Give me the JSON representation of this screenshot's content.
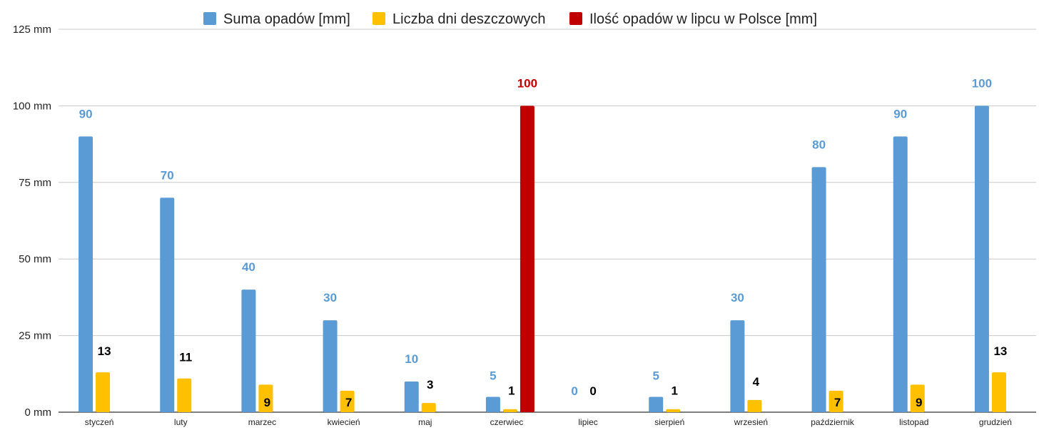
{
  "chart_data": {
    "type": "bar",
    "categories": [
      "styczeń",
      "luty",
      "marzec",
      "kwiecień",
      "maj",
      "czerwiec",
      "lipiec",
      "sierpień",
      "wrzesień",
      "październik",
      "listopad",
      "grudzień"
    ],
    "series": [
      {
        "name": "Suma opadów [mm]",
        "color": "#5B9BD5",
        "label_color": "#5B9BD5",
        "values": [
          90,
          70,
          40,
          30,
          10,
          5,
          0,
          5,
          30,
          80,
          90,
          100
        ],
        "labels": [
          "90",
          "70",
          "40",
          "30",
          "10",
          "5",
          "0",
          "5",
          "30",
          "80",
          "90",
          "100"
        ]
      },
      {
        "name": "Liczba dni deszczowych",
        "color": "#FFC000",
        "label_color": "#000000",
        "values": [
          13,
          11,
          9,
          7,
          3,
          1,
          0,
          1,
          4,
          7,
          9,
          13
        ],
        "labels": [
          "13",
          "11",
          "9",
          "7",
          "3",
          "1",
          "0",
          "1",
          "4",
          "7",
          "9",
          "13"
        ]
      },
      {
        "name": "Ilość opadów w lipcu w Polsce [mm]",
        "color": "#C00000",
        "label_color": "#C00000",
        "values": [
          null,
          null,
          null,
          null,
          null,
          100,
          null,
          null,
          null,
          null,
          null,
          null
        ],
        "labels": [
          "",
          "",
          "",
          "",
          "",
          "100",
          "",
          "",
          "",
          "",
          "",
          ""
        ]
      }
    ],
    "ylim": [
      0,
      125
    ],
    "yticks": [
      0,
      25,
      50,
      75,
      100,
      125
    ],
    "ytick_labels": [
      "0 mm",
      "25 mm",
      "50 mm",
      "75 mm",
      "100 mm",
      "125 mm"
    ],
    "grid": true,
    "legend_position": "top-center"
  }
}
